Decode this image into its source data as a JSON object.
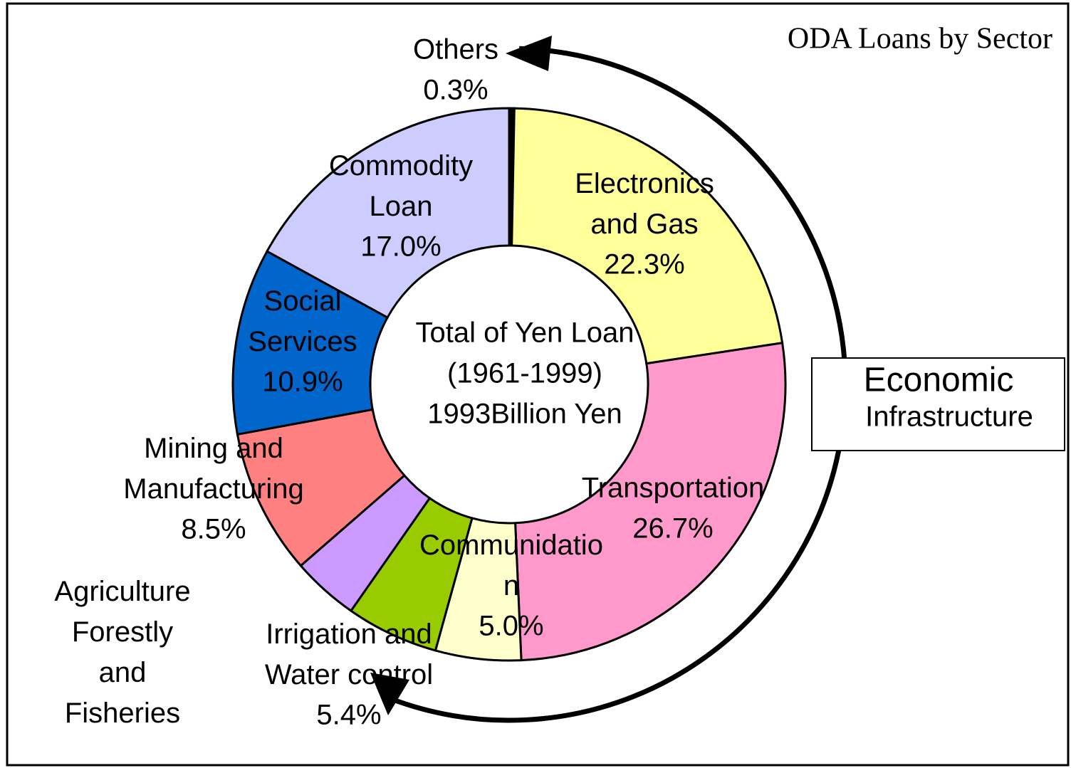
{
  "chart_data": {
    "type": "donut",
    "title": "ODA Loans by Sector",
    "categories": [
      "Others",
      "Electronics\nand Gas",
      "Transportation",
      "Communidatio\nn",
      "Irrigation and\nWater control",
      "Agriculture\nForestly\nand\nFisheries",
      "Mining and\nManufacturing",
      "Social\nServices",
      "Commodity\nLoan"
    ],
    "values": [
      0.3,
      22.3,
      26.7,
      5.0,
      5.4,
      3.9,
      8.5,
      10.9,
      17.0
    ],
    "value_labels": [
      "0.3%",
      "22.3%",
      "26.7%",
      "5.0%",
      "5.4%",
      null,
      "8.5%",
      "10.9%",
      "17.0%"
    ],
    "colors": [
      "#000000",
      "#ffff99",
      "#ff99cc",
      "#ffffcc",
      "#99cc00",
      "#cc99ff",
      "#ff8080",
      "#0066cc",
      "#ccccff"
    ],
    "center_text": [
      "Total of Yen Loan",
      "(1961-1999)",
      "1993Billion Yen"
    ],
    "annotation_lines": [
      "Economic",
      "Infrastructure"
    ]
  }
}
